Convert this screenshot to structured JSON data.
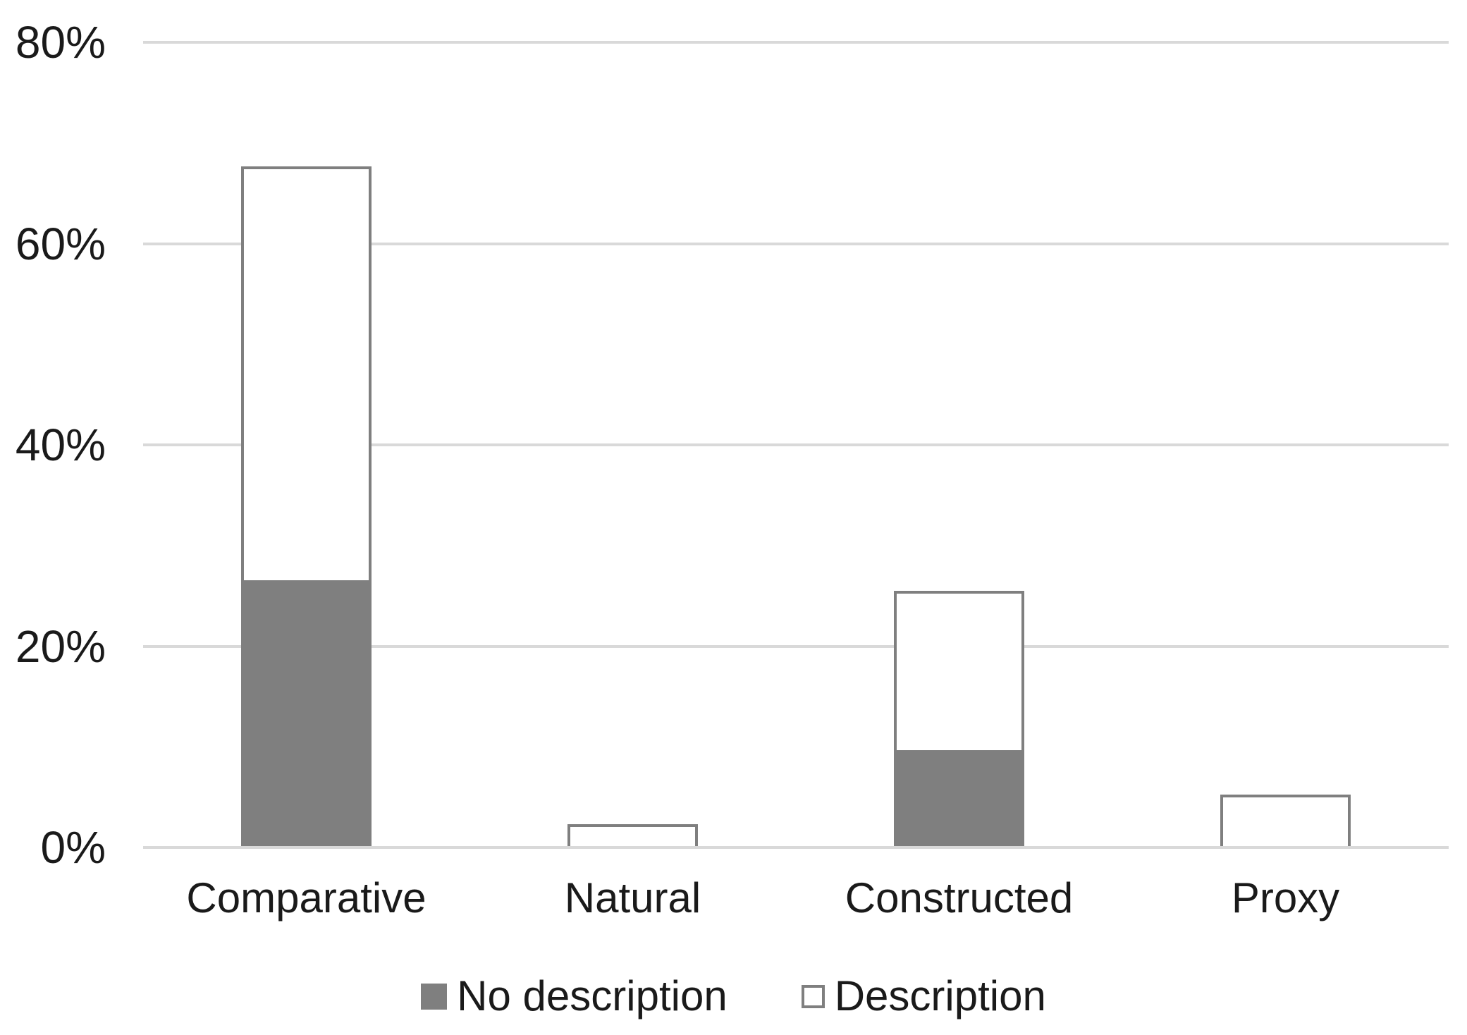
{
  "chart_data": {
    "type": "bar",
    "subtype": "stacked-column",
    "title": "",
    "xlabel": "",
    "ylabel": "",
    "categories": [
      "Comparative",
      "Natural",
      "Constructed",
      "Proxy"
    ],
    "series": [
      {
        "name": "No description",
        "values": [
          26.4,
          0,
          9.5,
          0
        ],
        "fill": "#7f7f7f",
        "outline": "none"
      },
      {
        "name": "Description",
        "values": [
          41.1,
          2.2,
          15.8,
          5.1
        ],
        "fill": "#ffffff",
        "outline": "#7f7f7f"
      }
    ],
    "stack_totals": [
      67.5,
      2.2,
      25.3,
      5.1
    ],
    "ylim": [
      0,
      80
    ],
    "yticks": [
      {
        "value": 0,
        "label": "0%"
      },
      {
        "value": 20,
        "label": "20%"
      },
      {
        "value": 40,
        "label": "40%"
      },
      {
        "value": 60,
        "label": "60%"
      },
      {
        "value": 80,
        "label": "80%"
      }
    ],
    "grid": "horizontal",
    "legend_position": "bottom"
  },
  "colors": {
    "background": "#ffffff",
    "bar_gray": "#7f7f7f",
    "bar_outline": "#7f7f7f",
    "gridline": "#d9d9d9",
    "text": "#1a1a1a"
  }
}
